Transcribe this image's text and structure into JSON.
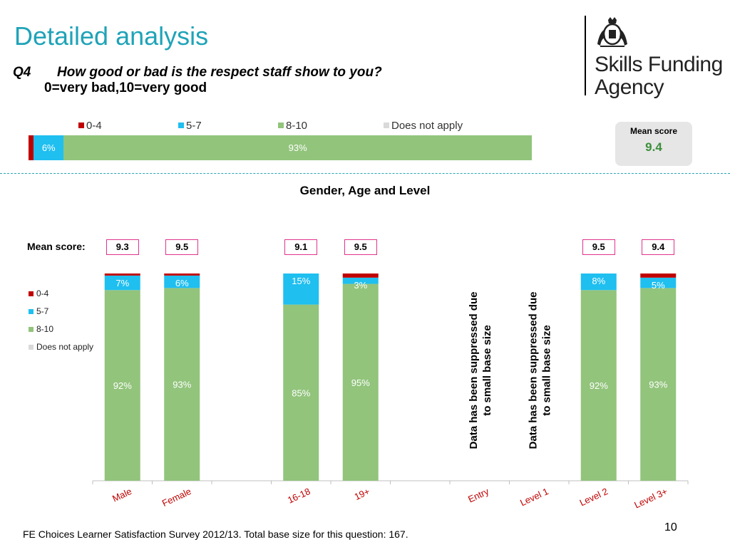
{
  "slide": {
    "title": "Detailed analysis",
    "question_number": "Q4",
    "question_text": "How good or bad is the respect staff show to you?",
    "question_scale": "0=very bad,10=very good",
    "logo_line1": "Skills Funding",
    "logo_line2": "Agency",
    "page_number": "10",
    "source": "FE Choices  Learner Satisfaction Survey 2012/13.  Total base size for this question: 167."
  },
  "colors": {
    "c0_4": "#c00000",
    "c5_7": "#1fbff0",
    "c8_10": "#92c47c",
    "does_not_apply": "#d9d9d9",
    "title": "#1fa3b8"
  },
  "overall": {
    "legend": [
      "0-4",
      "5-7",
      "8-10",
      "Does not apply"
    ],
    "mean_score_label": "Mean score",
    "mean_score_value": "9.4",
    "values": [
      1,
      6,
      93,
      0
    ],
    "labels": [
      "",
      "6%",
      "93%",
      ""
    ]
  },
  "breakdown": {
    "subtitle": "Gender, Age and Level",
    "mean_label": "Mean score:",
    "legend": [
      "0-4",
      "5-7",
      "8-10",
      "Does not apply"
    ],
    "suppressed_text_line1": "Data has been suppressed due",
    "suppressed_text_line2": "to small base size"
  },
  "chart_data": {
    "type": "bar",
    "stacked": true,
    "categories": [
      "Male",
      "Female",
      "",
      "16-18",
      "19+",
      "",
      "Entry",
      "Level 1",
      "Level 2",
      "Level 3+"
    ],
    "mean_scores": [
      "9.3",
      "9.5",
      "",
      "9.1",
      "9.5",
      "",
      "",
      "",
      "9.5",
      "9.4"
    ],
    "suppressed": [
      false,
      false,
      false,
      false,
      false,
      false,
      true,
      true,
      false,
      false
    ],
    "series": [
      {
        "name": "0-4",
        "values": [
          1,
          1,
          0,
          0,
          2,
          0,
          0,
          0,
          0,
          2
        ],
        "labels": [
          "",
          "",
          "",
          "",
          "",
          "",
          "",
          "",
          "",
          ""
        ]
      },
      {
        "name": "5-7",
        "values": [
          7,
          6,
          0,
          15,
          3,
          0,
          0,
          0,
          8,
          5
        ],
        "labels": [
          "7%",
          "6%",
          "",
          "15%",
          "3%",
          "",
          "",
          "",
          "8%",
          "5%"
        ]
      },
      {
        "name": "8-10",
        "values": [
          92,
          93,
          0,
          85,
          95,
          0,
          0,
          0,
          92,
          93
        ],
        "labels": [
          "92%",
          "93%",
          "",
          "85%",
          "95%",
          "",
          "",
          "",
          "92%",
          "93%"
        ]
      },
      {
        "name": "Does not apply",
        "values": [
          0,
          0,
          0,
          0,
          0,
          0,
          0,
          0,
          0,
          0
        ],
        "labels": [
          "",
          "",
          "",
          "",
          "",
          "",
          "",
          "",
          "",
          ""
        ]
      }
    ],
    "ylim": [
      0,
      100
    ]
  }
}
